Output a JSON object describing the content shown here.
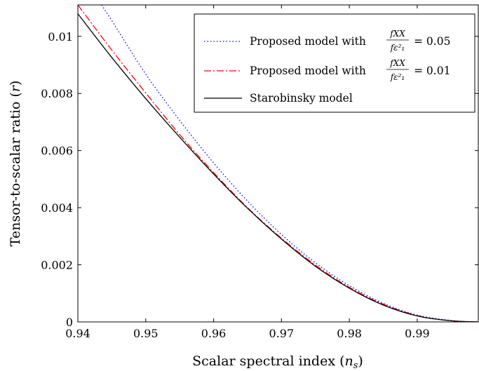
{
  "chart_data": {
    "type": "line",
    "xlabel": "Scalar spectral index (n_s)",
    "ylabel": "Tensor-to-scalar ratio (r)",
    "xlim": [
      0.94,
      0.999
    ],
    "ylim": [
      0,
      0.0111
    ],
    "xticks": [
      0.94,
      0.95,
      0.96,
      0.97,
      0.98,
      0.99
    ],
    "xtick_labels": [
      "0.94",
      "0.95",
      "0.96",
      "0.97",
      "0.98",
      "0.99"
    ],
    "yticks": [
      0,
      0.002,
      0.004,
      0.006,
      0.008,
      0.01
    ],
    "ytick_labels": [
      "0",
      "0.002",
      "0.004",
      "0.006",
      "0.008",
      "0.01"
    ],
    "grid": false,
    "legend_position": "top-right",
    "series": [
      {
        "name": "Proposed model with fXX/(f ε1²) = 0.05",
        "label_prefix": "Proposed model with",
        "ratio_value": "= 0.05",
        "color": "#0000ff",
        "dash": "dotted",
        "x": [
          0.9435,
          0.945,
          0.95,
          0.955,
          0.96,
          0.965,
          0.97,
          0.975,
          0.98,
          0.985,
          0.99,
          0.995,
          0.999
        ],
        "y": [
          0.0111,
          0.01055,
          0.00868,
          0.00706,
          0.00557,
          0.00423,
          0.00306,
          0.00207,
          0.00127,
          0.00065,
          0.00024,
          5e-05,
          0.0
        ]
      },
      {
        "name": "Proposed model with fXX/(f ε1²) = 0.01",
        "label_prefix": "Proposed model with",
        "ratio_value": "= 0.01",
        "color": "#ff0000",
        "dash": "dashdot",
        "x": [
          0.94,
          0.945,
          0.95,
          0.955,
          0.96,
          0.965,
          0.97,
          0.975,
          0.98,
          0.985,
          0.99,
          0.995,
          0.999
        ],
        "y": [
          0.0111,
          0.00952,
          0.00802,
          0.00656,
          0.00523,
          0.004,
          0.00293,
          0.00199,
          0.00121,
          0.00062,
          0.00022,
          4e-05,
          0.0
        ]
      },
      {
        "name": "Starobinsky model",
        "color": "#000000",
        "dash": "solid",
        "x": [
          0.94,
          0.945,
          0.95,
          0.955,
          0.96,
          0.965,
          0.97,
          0.975,
          0.98,
          0.985,
          0.99,
          0.995,
          0.999
        ],
        "y": [
          0.01079,
          0.00926,
          0.00782,
          0.00647,
          0.00518,
          0.00398,
          0.0029,
          0.00195,
          0.00118,
          0.00059,
          0.00021,
          4e-05,
          0.0
        ]
      }
    ],
    "legend_math": {
      "numerator": "fXX",
      "denominator": "fε²₁"
    }
  }
}
